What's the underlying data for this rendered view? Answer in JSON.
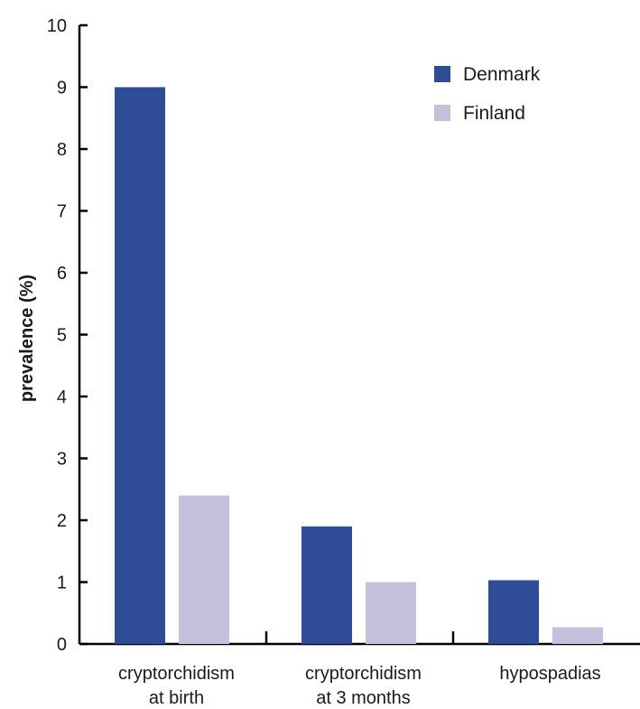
{
  "chart_data": {
    "type": "bar",
    "title": "",
    "xlabel": "",
    "ylabel": "prevalence (%)",
    "ylim": [
      0,
      10
    ],
    "yticks": [
      0,
      1,
      2,
      3,
      4,
      5,
      6,
      7,
      8,
      9,
      10
    ],
    "grid": false,
    "legend_position": "top-right",
    "categories": [
      [
        "cryptorchidism",
        "at birth"
      ],
      [
        "cryptorchidism",
        "at 3 months"
      ],
      [
        "hypospadias"
      ]
    ],
    "series": [
      {
        "name": "Denmark",
        "color": "#2e4d96",
        "values": [
          9.0,
          1.9,
          1.03
        ]
      },
      {
        "name": "Finland",
        "color": "#c3c0dc",
        "values": [
          2.4,
          1.0,
          0.27
        ]
      }
    ]
  }
}
